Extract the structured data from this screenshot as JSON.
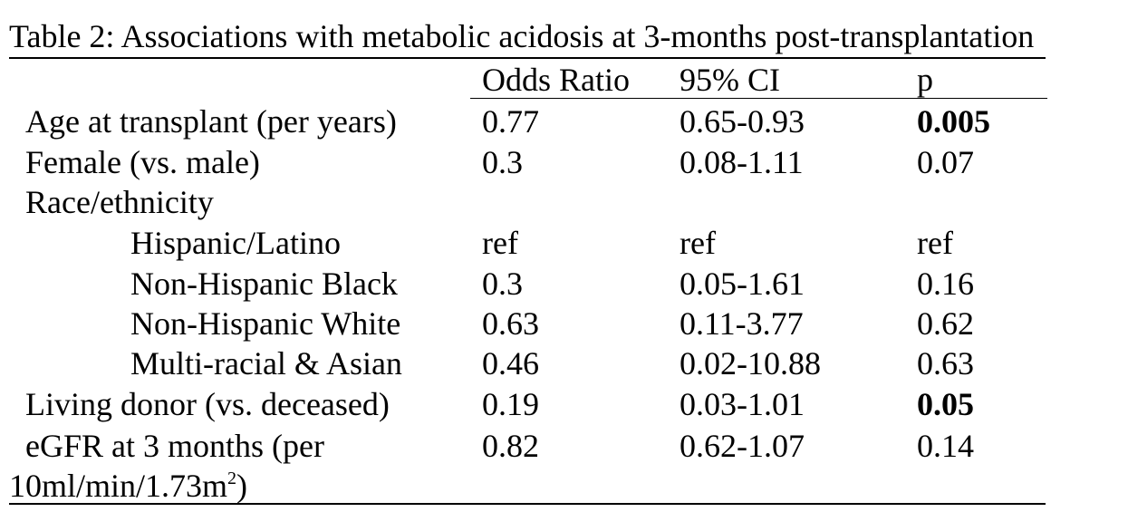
{
  "table": {
    "caption": "Table 2: Associations with metabolic acidosis at 3-months post-transplantation",
    "headers": {
      "label": "",
      "odds_ratio": "Odds Ratio",
      "ci": "95% CI",
      "p": "p"
    },
    "rows": [
      {
        "label": "Age at transplant (per years)",
        "odds_ratio": "0.77",
        "ci": "0.65-0.93",
        "p": "0.005",
        "p_bold": true
      },
      {
        "label": "Female (vs. male)",
        "odds_ratio": "0.3",
        "ci": "0.08-1.11",
        "p": "0.07",
        "p_bold": false
      },
      {
        "label": "Race/ethnicity",
        "odds_ratio": "",
        "ci": "",
        "p": "",
        "p_bold": false
      },
      {
        "label": "Hispanic/Latino",
        "odds_ratio": "ref",
        "ci": "ref",
        "p": "ref",
        "p_bold": false
      },
      {
        "label": "Non-Hispanic Black",
        "odds_ratio": "0.3",
        "ci": "0.05-1.61",
        "p": "0.16",
        "p_bold": false
      },
      {
        "label": "Non-Hispanic White",
        "odds_ratio": "0.63",
        "ci": "0.11-3.77",
        "p": "0.62",
        "p_bold": false
      },
      {
        "label": "Multi-racial & Asian",
        "odds_ratio": "0.46",
        "ci": "0.02-10.88",
        "p": "0.63",
        "p_bold": false
      },
      {
        "label": "Living donor (vs. deceased)",
        "odds_ratio": "0.19",
        "ci": "0.03-1.01",
        "p": "0.05",
        "p_bold": true
      },
      {
        "label": "eGFR at 3 months (per",
        "label_cont": "10ml/min/1.73m",
        "label_sup": "2",
        "label_end": ")",
        "odds_ratio": "0.82",
        "ci": "0.62-1.07",
        "p": "0.14",
        "p_bold": false
      }
    ]
  }
}
